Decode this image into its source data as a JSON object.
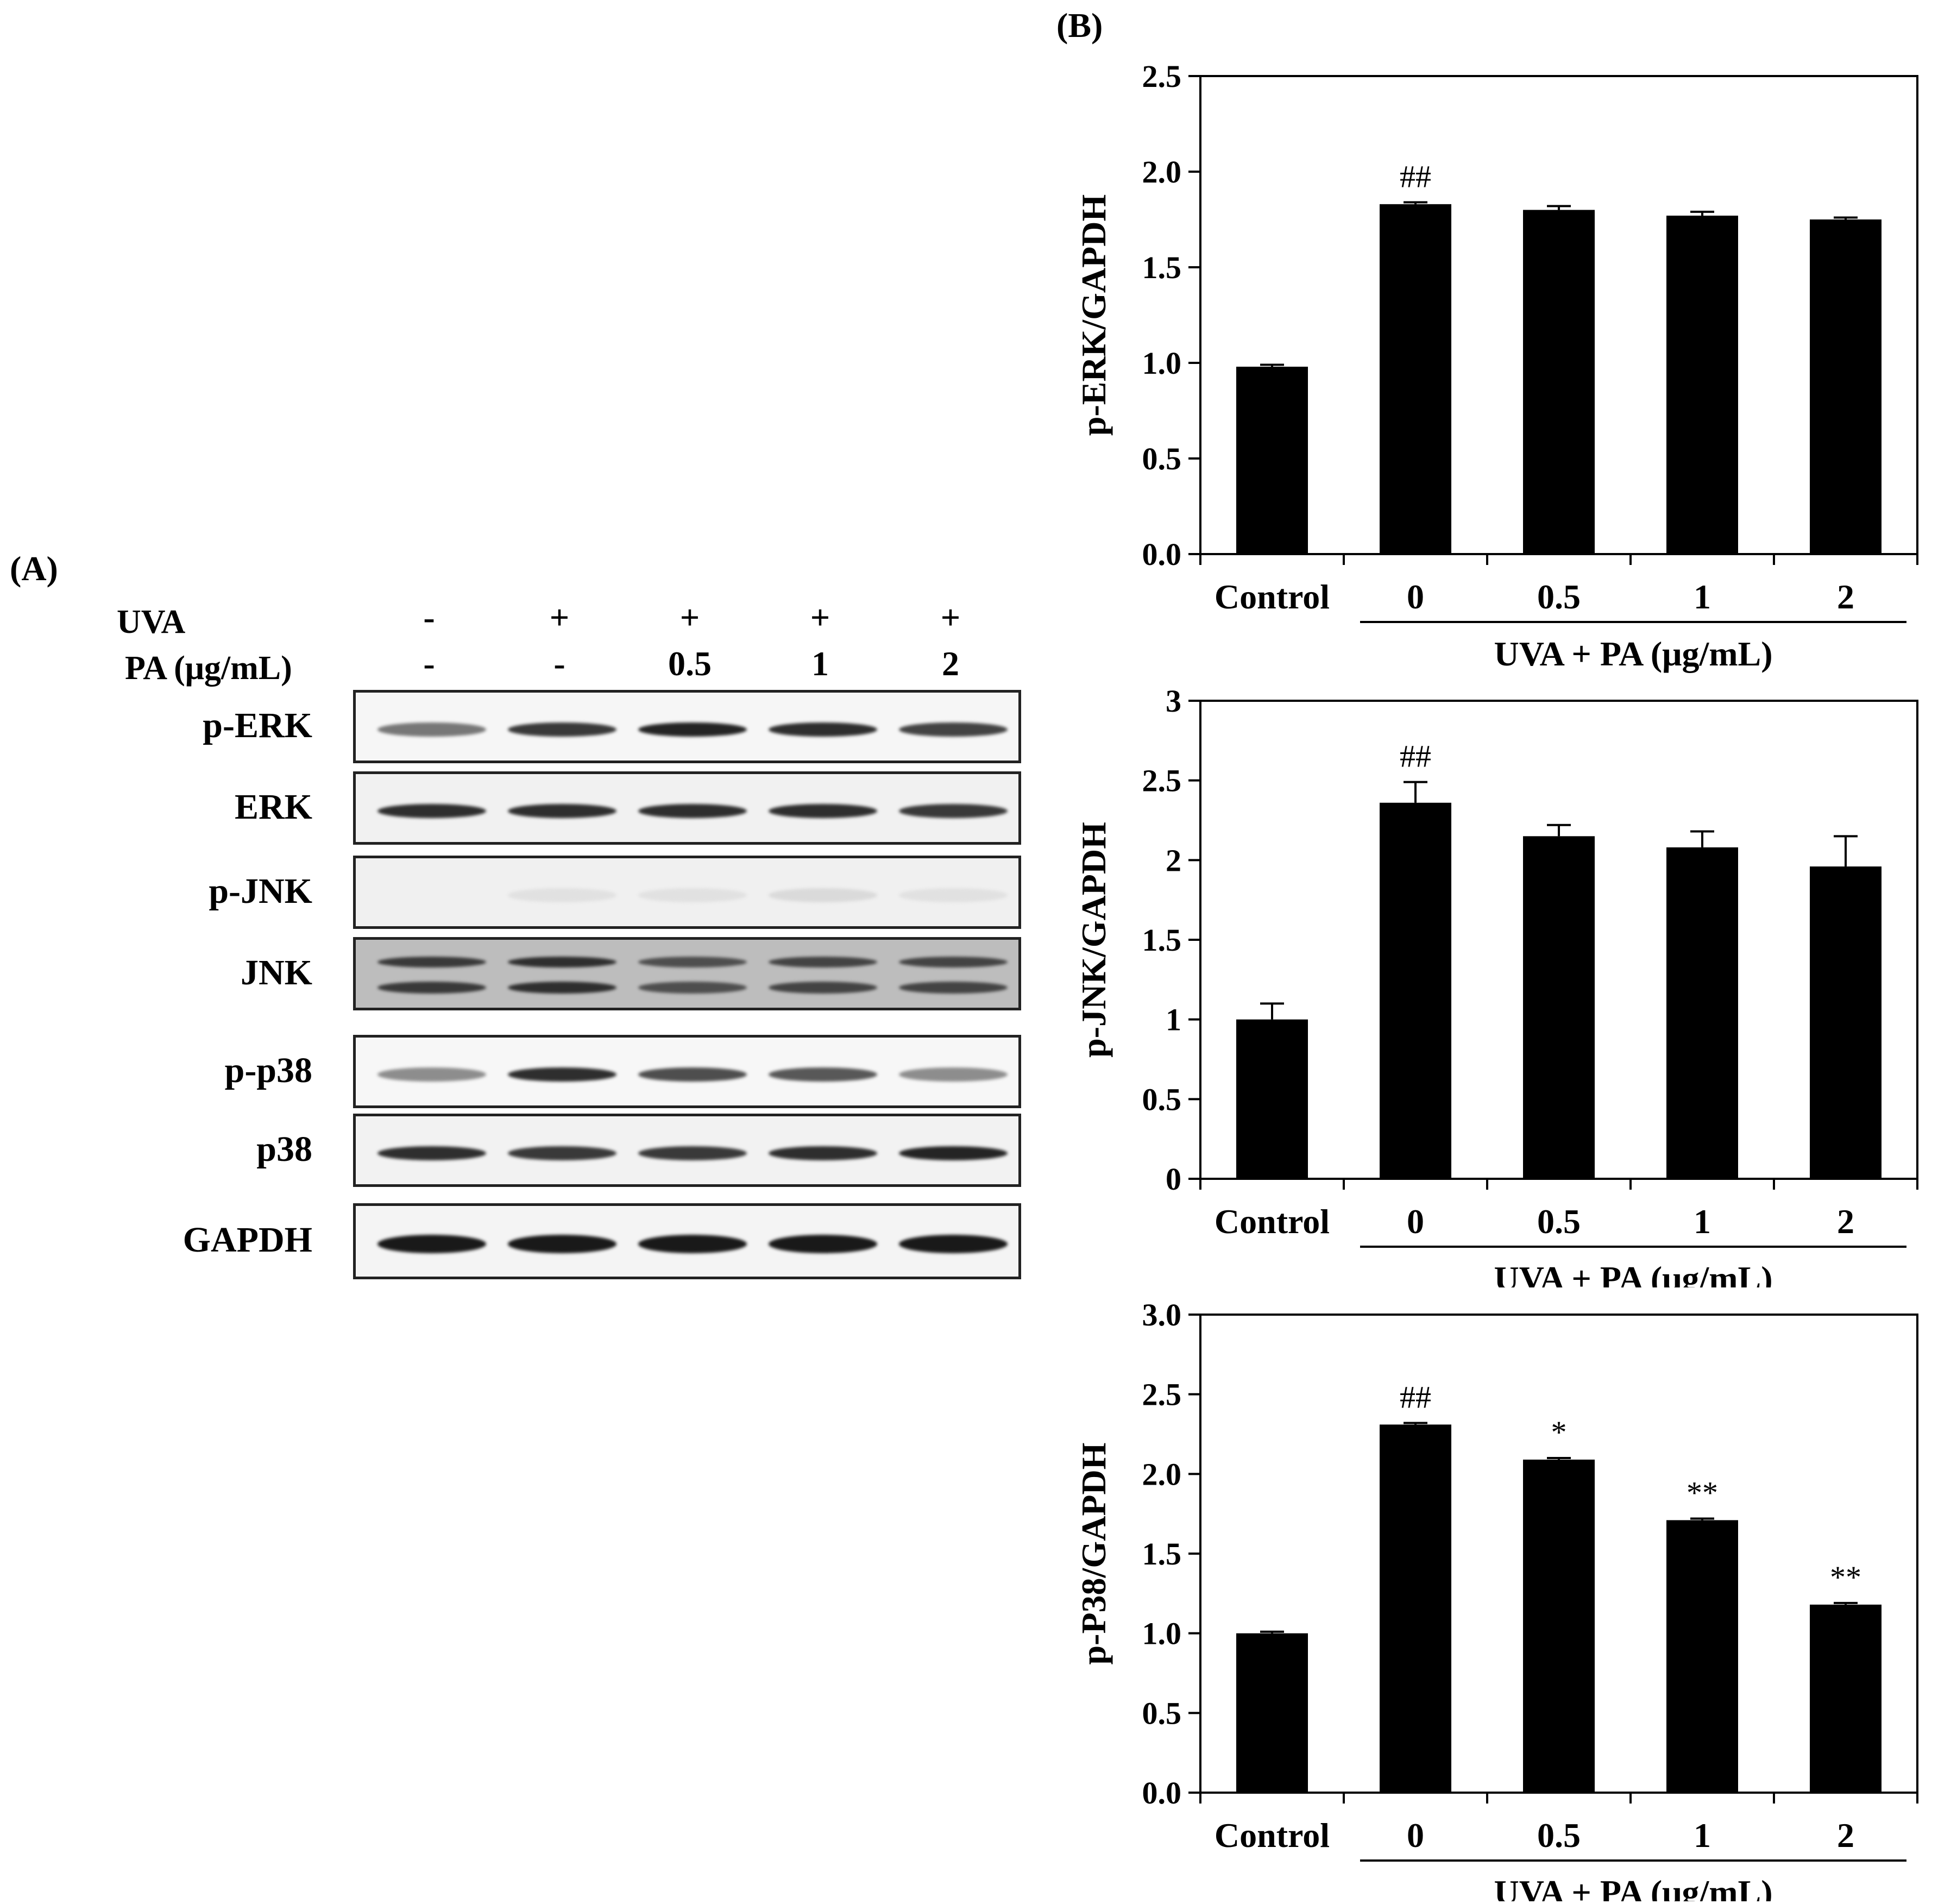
{
  "figure": {
    "panel_a_label": "(A)",
    "panel_b_label": "(B)"
  },
  "blot": {
    "conditions": [
      {
        "name": "UVA",
        "values": [
          "-",
          "+",
          "+",
          "+",
          "+"
        ]
      },
      {
        "name": "PA (μg/mL)",
        "values": [
          "-",
          "-",
          "0.5",
          "1",
          "2"
        ]
      }
    ],
    "rows": [
      {
        "label": "p-ERK",
        "background": "#f6f6f6",
        "bands": [
          0.55,
          0.85,
          0.95,
          0.9,
          0.8
        ],
        "double": false
      },
      {
        "label": "ERK",
        "background": "#f1f1f1",
        "bands": [
          0.9,
          0.9,
          0.9,
          0.9,
          0.85
        ],
        "double": false
      },
      {
        "label": "p-JNK",
        "background": "#f0f0f0",
        "bands": [
          0.0,
          0.05,
          0.05,
          0.08,
          0.05
        ],
        "double": false
      },
      {
        "label": "JNK",
        "background": "#bdbdbd",
        "bands": [
          0.85,
          0.9,
          0.75,
          0.8,
          0.8
        ],
        "double": true
      },
      {
        "label": "p-p38",
        "background": "#f7f7f7",
        "bands": [
          0.45,
          0.9,
          0.75,
          0.7,
          0.45
        ],
        "double": false
      },
      {
        "label": "p38",
        "background": "#f2f2f2",
        "bands": [
          0.9,
          0.85,
          0.85,
          0.9,
          0.95
        ],
        "double": false
      },
      {
        "label": "GAPDH",
        "background": "#f4f4f4",
        "bands": [
          1.0,
          1.0,
          1.0,
          1.0,
          1.0
        ],
        "double": false
      }
    ]
  },
  "chart_data": [
    {
      "type": "bar",
      "categories": [
        "Control",
        "0",
        "0.5",
        "1",
        "2"
      ],
      "group_label": "UVA + PA (μg/mL)",
      "ylabel": "p-ERK/GAPDH",
      "ylim": [
        0,
        2.5
      ],
      "yticks": [
        "0.0",
        "0.5",
        "1.0",
        "1.5",
        "2.0",
        "2.5"
      ],
      "values": [
        0.98,
        1.83,
        1.8,
        1.77,
        1.75
      ],
      "errors": [
        0.01,
        0.01,
        0.02,
        0.02,
        0.01
      ],
      "annotations": [
        "",
        "##",
        "",
        "",
        ""
      ]
    },
    {
      "type": "bar",
      "categories": [
        "Control",
        "0",
        "0.5",
        "1",
        "2"
      ],
      "group_label": "UVA + PA (μg/mL)",
      "ylabel": "p-JNK/GAPDH",
      "ylim": [
        0,
        3
      ],
      "yticks": [
        "0",
        "0.5",
        "1",
        "1.5",
        "2",
        "2.5",
        "3"
      ],
      "values": [
        1.0,
        2.36,
        2.15,
        2.08,
        1.96
      ],
      "errors": [
        0.1,
        0.13,
        0.07,
        0.1,
        0.19
      ],
      "annotations": [
        "",
        "##",
        "",
        "",
        ""
      ]
    },
    {
      "type": "bar",
      "categories": [
        "Control",
        "0",
        "0.5",
        "1",
        "2"
      ],
      "group_label": "UVA +  PA (μg/mL)",
      "ylabel": "p-P38/GAPDH",
      "ylim": [
        0,
        3.0
      ],
      "yticks": [
        "0.0",
        "0.5",
        "1.0",
        "1.5",
        "2.0",
        "2.5",
        "3.0"
      ],
      "values": [
        1.0,
        2.31,
        2.09,
        1.71,
        1.18
      ],
      "errors": [
        0.01,
        0.01,
        0.01,
        0.01,
        0.01
      ],
      "annotations": [
        "",
        "##",
        "*",
        "**",
        "**"
      ]
    }
  ]
}
